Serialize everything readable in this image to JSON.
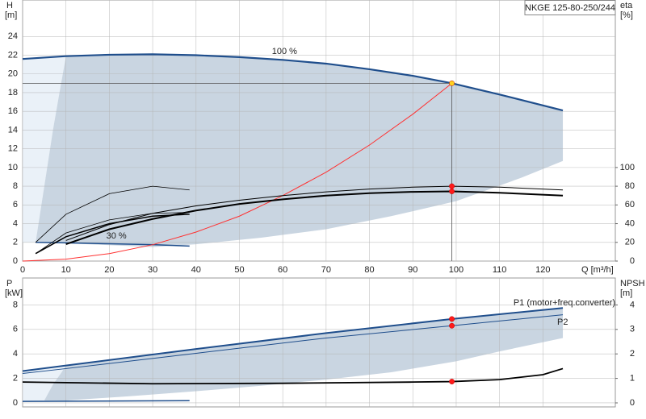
{
  "chart_data": [
    {
      "type": "line",
      "box_label": "NKGE 125-80-250/244",
      "y_label": "H",
      "y_unit": "[m]",
      "y2_label": "eta",
      "y2_unit": "[%]",
      "x_label": "Q [m³/h]",
      "xlim": [
        0,
        136.7
      ],
      "ylim": [
        0,
        27.9
      ],
      "y2lim": [
        0,
        279
      ],
      "xticks": [
        0,
        10,
        20,
        30,
        40,
        50,
        60,
        70,
        80,
        90,
        100,
        110,
        120
      ],
      "yticks": [
        0,
        2,
        4,
        6,
        8,
        10,
        12,
        14,
        16,
        18,
        20,
        22,
        24
      ],
      "y2ticks": [
        0,
        20,
        40,
        60,
        80,
        100
      ],
      "grid": true,
      "xtick_labels": true,
      "areas": [
        {
          "color": "#eaf1f8",
          "x": [
            0,
            10,
            8.5,
            7,
            5,
            3,
            0
          ],
          "y": [
            21.6,
            21.9,
            18,
            14,
            8,
            2,
            2
          ]
        },
        {
          "color": "#c9d5e1",
          "x": [
            10,
            20,
            30,
            40,
            50,
            60,
            70,
            80,
            90,
            99,
            110,
            124.6,
            124.6,
            115,
            100,
            85,
            70,
            55,
            40,
            30,
            10,
            3,
            5,
            7,
            8.5
          ],
          "y": [
            21.9,
            22.05,
            22.1,
            22.0,
            21.8,
            21.5,
            21.1,
            20.5,
            19.8,
            19.0,
            17.8,
            16.1,
            10.7,
            8.9,
            6.4,
            4.8,
            3.4,
            2.5,
            1.8,
            1.5,
            1.9,
            2,
            8,
            14,
            18
          ]
        }
      ],
      "series": [
        {
          "color": "#1f4e8c",
          "width": 2.2,
          "x": [
            0,
            10,
            20,
            30,
            40,
            50,
            60,
            70,
            80,
            90,
            99,
            110,
            124.6
          ],
          "values": [
            21.6,
            21.9,
            22.05,
            22.1,
            22.0,
            21.8,
            21.5,
            21.1,
            20.5,
            19.8,
            19.0,
            17.8,
            16.1
          ]
        },
        {
          "color": "#1f4e8c",
          "width": 1.5,
          "x": [
            3,
            10,
            20,
            30,
            38.5
          ],
          "values": [
            2.0,
            1.95,
            1.85,
            1.75,
            1.6
          ]
        },
        {
          "color": "#ff3030",
          "width": 1,
          "x": [
            0,
            10,
            20,
            30,
            40,
            50,
            60,
            70,
            80,
            90,
            99
          ],
          "values": [
            0,
            0.2,
            0.8,
            1.75,
            3.1,
            4.8,
            7.0,
            9.5,
            12.4,
            15.7,
            19.0
          ]
        },
        {
          "color": "#000000",
          "width": 1,
          "axis": "y2",
          "x": [
            10,
            20,
            30,
            40,
            50,
            60,
            70,
            80,
            90,
            99,
            110,
            124.6
          ],
          "values": [
            22,
            39,
            51,
            59,
            65,
            70,
            74,
            77,
            79,
            80,
            79,
            76
          ]
        },
        {
          "color": "#000000",
          "width": 2,
          "axis": "y2",
          "x": [
            10,
            20,
            30,
            40,
            50,
            60,
            70,
            80,
            90,
            99,
            110,
            124.6
          ],
          "values": [
            18,
            34,
            45,
            54,
            61,
            66,
            70,
            72.5,
            74,
            74.5,
            73,
            70
          ]
        },
        {
          "color": "#000000",
          "width": 0.8,
          "axis": "y2",
          "x": [
            3,
            10,
            20,
            30,
            38.5
          ],
          "values": [
            20,
            50,
            72,
            80,
            76
          ]
        },
        {
          "color": "#000000",
          "width": 0.8,
          "axis": "y2",
          "x": [
            3,
            10,
            20,
            30,
            38.5
          ],
          "values": [
            8,
            30,
            44,
            51,
            52
          ]
        },
        {
          "color": "#000000",
          "width": 1.5,
          "axis": "y2",
          "x": [
            3,
            10,
            20,
            30,
            38.5
          ],
          "values": [
            8,
            26,
            40,
            48,
            50
          ]
        }
      ],
      "crosshair": {
        "x": 99,
        "y": 19.0
      },
      "markers": [
        {
          "x": 99,
          "y": 19.0,
          "color": "#ffd21f"
        },
        {
          "x": 99,
          "y": 80,
          "color": "#ff1a1a",
          "axis": "y2"
        },
        {
          "x": 99,
          "y": 74.5,
          "color": "#ff1a1a",
          "axis": "y2"
        }
      ],
      "annotations": [
        {
          "text": "100 %",
          "x": 57.5,
          "y": 22.4
        },
        {
          "text": "30 %",
          "x": 19.3,
          "y": 2.67
        }
      ]
    },
    {
      "type": "line",
      "y_label": "P",
      "y_unit": "[kW]",
      "y2_label": "NPSH",
      "y2_unit": "[m]",
      "xlim": [
        0,
        136.7
      ],
      "ylim": [
        -0.33,
        10.2
      ],
      "y2lim": [
        -0.165,
        5.1
      ],
      "xticks": [
        0,
        10,
        20,
        30,
        40,
        50,
        60,
        70,
        80,
        90,
        100,
        110,
        120
      ],
      "yticks": [
        0,
        2,
        4,
        6,
        8
      ],
      "y2ticks": [
        0,
        1,
        2,
        3,
        4
      ],
      "grid": true,
      "xtick_labels": false,
      "areas": [
        {
          "color": "#eaf1f8",
          "x": [
            0,
            5,
            7,
            9,
            10,
            0
          ],
          "y": [
            0.1,
            0.2,
            1.5,
            2.5,
            3.05,
            2.6
          ]
        },
        {
          "color": "#c9d5e1",
          "x": [
            10,
            40,
            70,
            99,
            124.6,
            124.6,
            110,
            100,
            85,
            70,
            55,
            40,
            25,
            10,
            5,
            7,
            9
          ],
          "y": [
            3.05,
            4.4,
            5.7,
            6.85,
            7.75,
            5.3,
            4.2,
            3.4,
            2.5,
            1.9,
            1.4,
            0.95,
            0.55,
            0.2,
            0.2,
            1.5,
            2.5
          ]
        }
      ],
      "series": [
        {
          "color": "#1f4e8c",
          "width": 2,
          "x": [
            0,
            10,
            40,
            70,
            99,
            124.6
          ],
          "values": [
            2.6,
            3.05,
            4.4,
            5.7,
            6.85,
            7.75
          ]
        },
        {
          "color": "#1f4e8c",
          "width": 1,
          "x": [
            0,
            10,
            40,
            70,
            99,
            124.6
          ],
          "values": [
            2.4,
            2.8,
            4.05,
            5.3,
            6.3,
            7.2
          ]
        },
        {
          "color": "#1f4e8c",
          "width": 1.5,
          "x": [
            0,
            38.5
          ],
          "values": [
            0.12,
            0.18
          ]
        },
        {
          "color": "#000000",
          "width": 1.8,
          "axis": "y2",
          "x": [
            0,
            30,
            60,
            90,
            99,
            110,
            120,
            124.6
          ],
          "values": [
            0.85,
            0.78,
            0.8,
            0.85,
            0.87,
            0.95,
            1.15,
            1.4
          ]
        }
      ],
      "markers": [
        {
          "x": 99,
          "y": 6.85,
          "color": "#ff1a1a"
        },
        {
          "x": 99,
          "y": 6.3,
          "color": "#ff1a1a"
        },
        {
          "x": 99,
          "y": 0.87,
          "color": "#ff1a1a",
          "axis": "y2"
        }
      ],
      "annotations": [
        {
          "text": "P1 (motor+freq.converter)",
          "x": 113.2,
          "y": 8.16,
          "color": "#1f4e8c"
        },
        {
          "text": "P2",
          "x": 123.3,
          "y": 6.58,
          "color": "#1f4e8c"
        }
      ]
    }
  ]
}
